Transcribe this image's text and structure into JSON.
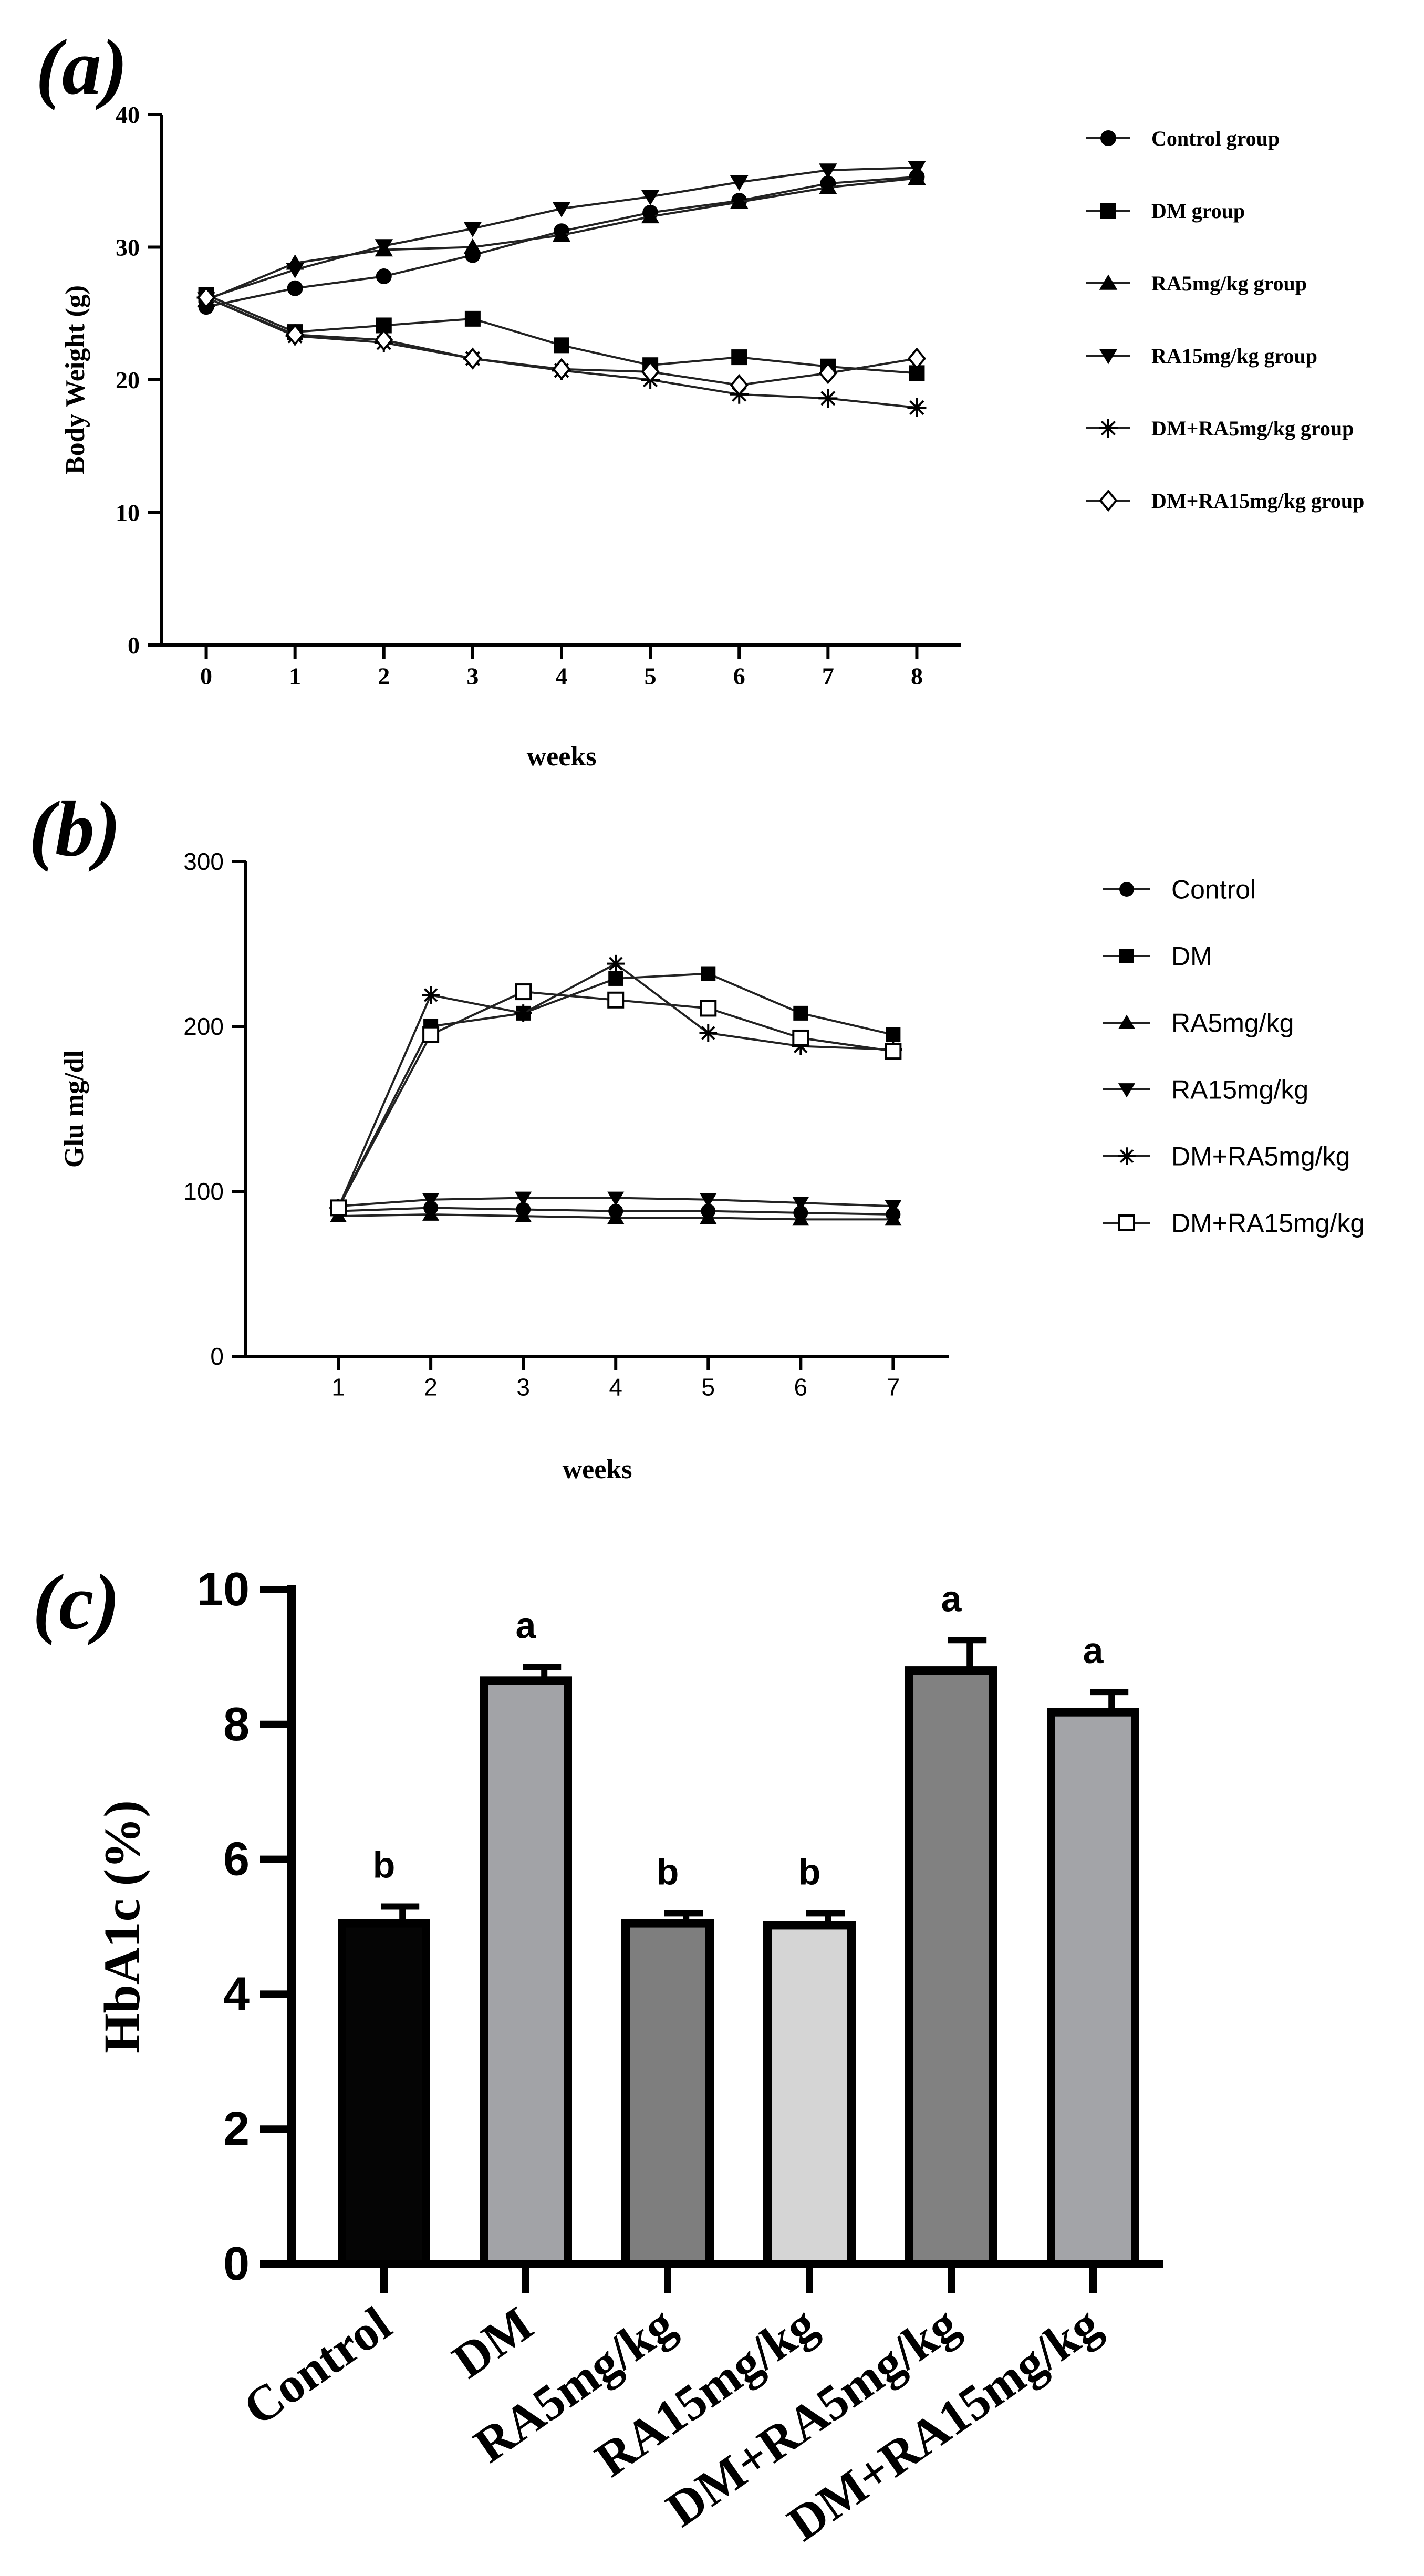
{
  "chart_data": [
    {
      "panel_label": "(a)",
      "type": "line",
      "title": "",
      "xlabel": "weeks",
      "ylabel": "Body Weight (g)",
      "x": [
        0,
        1,
        2,
        3,
        4,
        5,
        6,
        7,
        8
      ],
      "xlim": [
        -0.5,
        8.5
      ],
      "ylim": [
        0,
        40
      ],
      "yticks": [
        0,
        10,
        20,
        30,
        40
      ],
      "xticks": [
        0,
        1,
        2,
        3,
        4,
        5,
        6,
        7,
        8
      ],
      "legend_position": "right",
      "series": [
        {
          "name": "Control group",
          "marker": "circle",
          "values": [
            25.5,
            26.9,
            27.8,
            29.4,
            31.2,
            32.6,
            33.5,
            34.8,
            35.3
          ]
        },
        {
          "name": "DM group",
          "marker": "square",
          "values": [
            26.4,
            23.6,
            24.1,
            24.6,
            22.6,
            21.1,
            21.7,
            21.0,
            20.5
          ]
        },
        {
          "name": "RA5mg/kg group",
          "marker": "triangle-up",
          "values": [
            26.0,
            28.8,
            29.8,
            30.0,
            30.9,
            32.3,
            33.4,
            34.5,
            35.2
          ]
        },
        {
          "name": "RA15mg/kg group",
          "marker": "triangle-down",
          "values": [
            26.1,
            28.3,
            30.1,
            31.4,
            32.9,
            33.8,
            34.9,
            35.8,
            36.0
          ]
        },
        {
          "name": "DM+RA5mg/kg group",
          "marker": "asterisk",
          "values": [
            26.2,
            23.3,
            22.8,
            21.6,
            20.7,
            20.0,
            18.9,
            18.6,
            17.9
          ]
        },
        {
          "name": "DM+RA15mg/kg group",
          "marker": "diamond-open",
          "values": [
            26.2,
            23.4,
            23.0,
            21.6,
            20.8,
            20.6,
            19.6,
            20.5,
            21.6
          ]
        }
      ]
    },
    {
      "panel_label": "(b)",
      "type": "line",
      "title": "",
      "xlabel": "weeks",
      "ylabel": "Glu mg/dl",
      "x": [
        1,
        2,
        3,
        4,
        5,
        6,
        7
      ],
      "xlim": [
        0,
        7.6
      ],
      "ylim": [
        0,
        300
      ],
      "yticks": [
        0,
        100,
        200,
        300
      ],
      "xticks": [
        1,
        2,
        3,
        4,
        5,
        6,
        7
      ],
      "legend_position": "right",
      "series": [
        {
          "name": "Control",
          "marker": "circle-small",
          "values": [
            88,
            90,
            89,
            88,
            88,
            87,
            86
          ]
        },
        {
          "name": "DM",
          "marker": "square-small",
          "values": [
            90,
            200,
            208,
            229,
            232,
            208,
            195
          ]
        },
        {
          "name": "RA5mg/kg",
          "marker": "triangle-up",
          "values": [
            85,
            86,
            85,
            84,
            84,
            83,
            83
          ]
        },
        {
          "name": "RA15mg/kg",
          "marker": "triangle-down",
          "values": [
            91,
            95,
            96,
            96,
            95,
            93,
            91
          ]
        },
        {
          "name": "DM+RA5mg/kg",
          "marker": "asterisk",
          "values": [
            90,
            219,
            208,
            238,
            196,
            188,
            186
          ]
        },
        {
          "name": "DM+RA15mg/kg",
          "marker": "square-open",
          "values": [
            90,
            195,
            221,
            216,
            211,
            193,
            185
          ]
        }
      ]
    },
    {
      "panel_label": "(c)",
      "type": "bar",
      "title": "",
      "xlabel": "",
      "ylabel": "HbA1c (%)",
      "ylim": [
        0,
        10
      ],
      "yticks": [
        0,
        2,
        4,
        6,
        8,
        10
      ],
      "categories": [
        "Control",
        "DM",
        "RA5mg/kg",
        "RA15mg/kg",
        "DM+RA5mg/kg",
        "DM+RA15mg/kg"
      ],
      "values": [
        5.05,
        8.65,
        5.05,
        5.02,
        8.8,
        8.18
      ],
      "errors": [
        0.25,
        0.2,
        0.15,
        0.18,
        0.45,
        0.3
      ],
      "annotations": [
        "b",
        "a",
        "b",
        "b",
        "a",
        "a"
      ],
      "bar_colors": [
        "#050505",
        "#a2a3a7",
        "#7e7e7e",
        "#d5d5d5",
        "#818181",
        "#a3a4a8"
      ]
    }
  ]
}
